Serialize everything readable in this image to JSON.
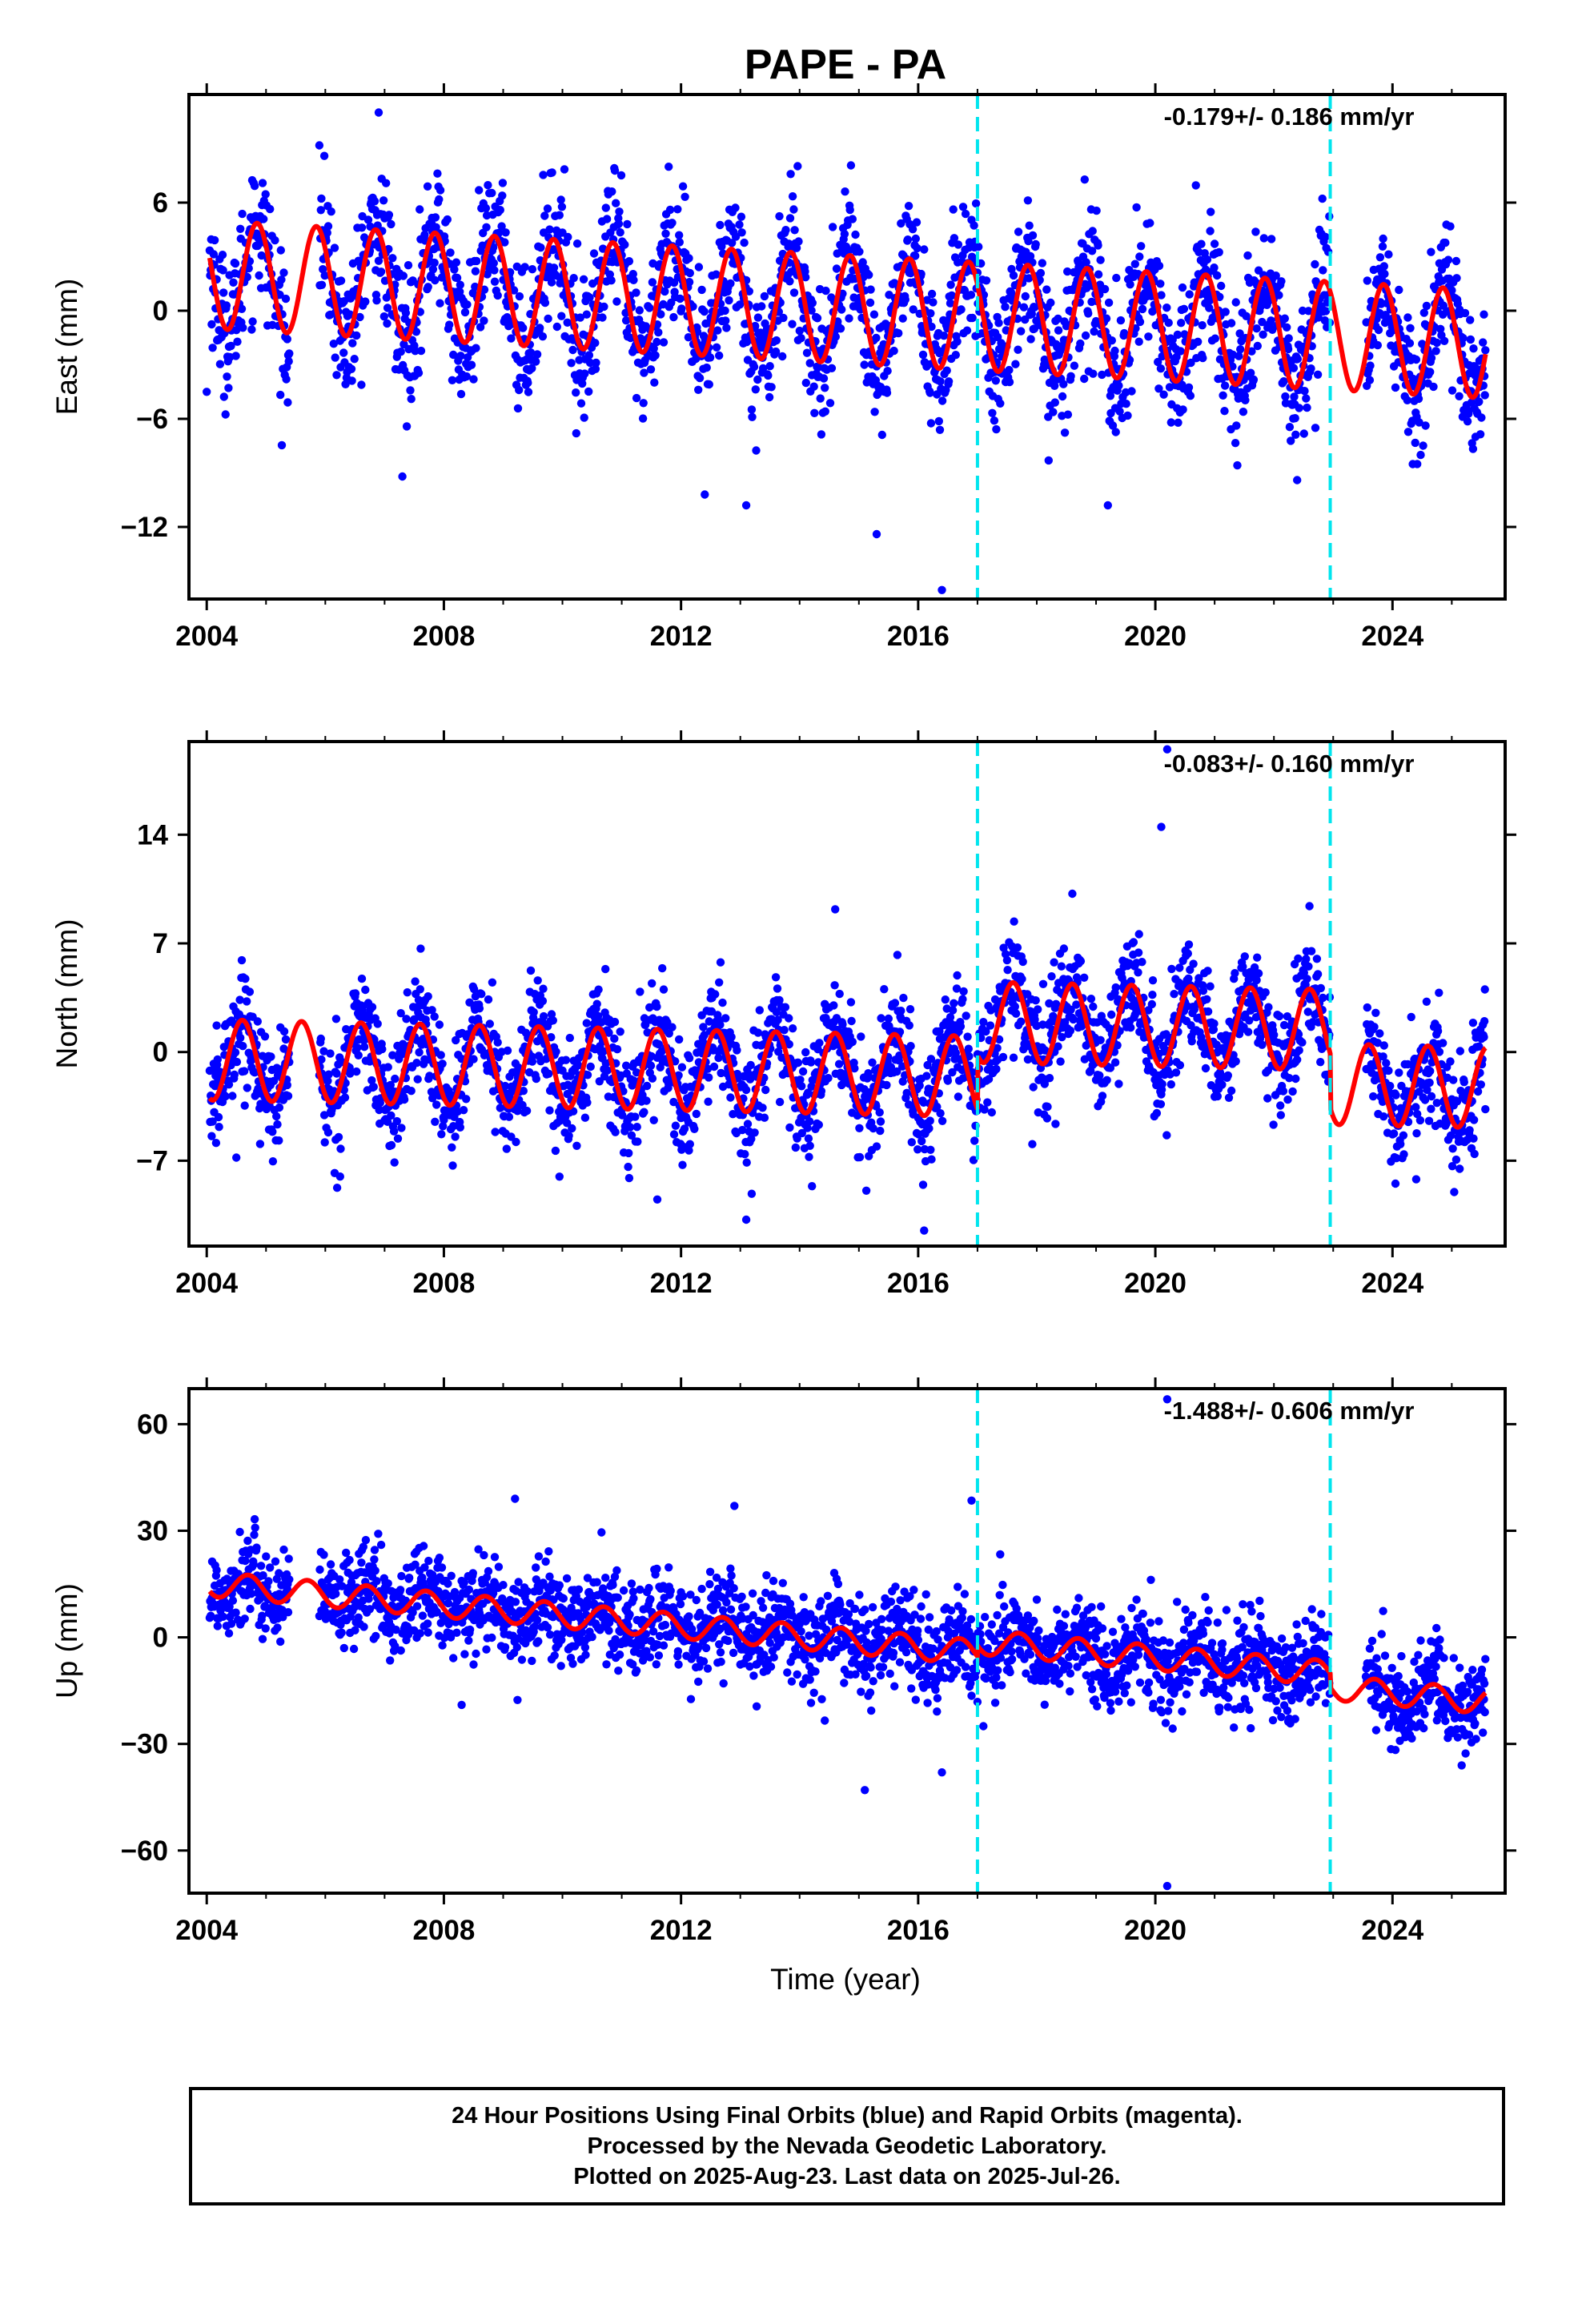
{
  "title": "PAPE - PA",
  "x_axis_label": "Time (year)",
  "colors": {
    "points": "#0000ff",
    "fit": "#ff0000",
    "breaks": "#00e5ee",
    "frame": "#000000"
  },
  "footer": {
    "line1": "24 Hour Positions Using Final Orbits (blue) and Rapid Orbits (magenta).",
    "line2": "Processed by the Nevada Geodetic Laboratory.",
    "line3": "Plotted on 2025-Aug-23. Last data on 2025-Jul-26."
  },
  "chart_data": [
    {
      "type": "scatter",
      "component": "east",
      "ylabel": "East (mm)",
      "rate_label": "-0.179+/- 0.186 mm/yr",
      "xlim": [
        2003.7,
        2025.9
      ],
      "ylim": [
        -16,
        12
      ],
      "xticks": [
        2004,
        2008,
        2012,
        2016,
        2020,
        2024
      ],
      "yticks": [
        -12,
        -6,
        0,
        6
      ],
      "breaks": [
        2017.0,
        2022.95
      ],
      "data_span": [
        2004.05,
        2025.57
      ],
      "series": [
        {
          "role": "daily positions",
          "color": "#0000ff",
          "trend": {
            "t0": 2004.05,
            "v0": 2.0,
            "rate": -0.179,
            "step": [
              [
                2017.0,
                0.0
              ],
              [
                2022.95,
                0.0
              ]
            ]
          },
          "annual_amplitude": 3.0,
          "phase_peak": 0.85,
          "scatter": 1.9
        },
        {
          "role": "model fit",
          "color": "#ff0000",
          "trend": {
            "t0": 2004.05,
            "v0": 2.0,
            "rate": -0.179
          },
          "annual_amplitude": 3.0,
          "phase_peak": 0.85
        }
      ],
      "outliers": [
        [
          2004.0,
          -4.5
        ],
        [
          2006.9,
          11.0
        ],
        [
          2007.3,
          -9.2
        ],
        [
          2012.4,
          -10.2
        ],
        [
          2013.1,
          -10.8
        ],
        [
          2015.3,
          -12.4
        ],
        [
          2016.4,
          -15.5
        ],
        [
          2019.2,
          -10.8
        ],
        [
          2022.7,
          -6.5
        ],
        [
          2025.4,
          -7.0
        ]
      ]
    },
    {
      "type": "scatter",
      "component": "north",
      "ylabel": "North (mm)",
      "rate_label": "-0.083+/- 0.160 mm/yr",
      "xlim": [
        2003.7,
        2025.9
      ],
      "ylim": [
        -12.5,
        20
      ],
      "xticks": [
        2004,
        2008,
        2012,
        2016,
        2020,
        2024
      ],
      "yticks": [
        -7,
        0,
        7,
        14
      ],
      "breaks": [
        2017.0,
        2022.95
      ],
      "data_span": [
        2004.05,
        2025.57
      ],
      "series": [
        {
          "role": "daily positions",
          "color": "#0000ff",
          "trend": {
            "t0": 2004.05,
            "v0": -0.5,
            "rate": -0.083,
            "step": [
              [
                2017.0,
                3.5
              ],
              [
                2022.95,
                -3.5
              ]
            ]
          },
          "annual_amplitude": 2.6,
          "phase_peak": 0.6,
          "scatter": 1.8
        },
        {
          "role": "model fit",
          "color": "#ff0000",
          "trend": {
            "t0": 2004.05,
            "v0": -0.5,
            "rate": -0.083
          },
          "annual_amplitude": 2.6,
          "phase_peak": 0.6
        }
      ],
      "outliers": [
        [
          2004.5,
          -6.8
        ],
        [
          2011.6,
          -9.5
        ],
        [
          2013.1,
          -10.8
        ],
        [
          2014.6,
          9.2
        ],
        [
          2016.1,
          -11.5
        ],
        [
          2018.6,
          10.2
        ],
        [
          2020.1,
          14.5
        ],
        [
          2020.2,
          19.5
        ],
        [
          2022.6,
          9.4
        ],
        [
          2024.4,
          -8.2
        ]
      ]
    },
    {
      "type": "scatter",
      "component": "up",
      "ylabel": "Up (mm)",
      "rate_label": "-1.488+/- 0.606 mm/yr",
      "xlim": [
        2003.7,
        2025.9
      ],
      "ylim": [
        -72,
        70
      ],
      "xticks": [
        2004,
        2008,
        2012,
        2016,
        2020,
        2024
      ],
      "yticks": [
        -60,
        -30,
        0,
        30,
        60
      ],
      "breaks": [
        2017.0,
        2022.95
      ],
      "data_span": [
        2004.05,
        2025.57
      ],
      "series": [
        {
          "role": "daily positions",
          "color": "#0000ff",
          "trend": {
            "t0": 2004.05,
            "v0": 15.0,
            "rate": -1.488,
            "step": [
              [
                2017.0,
                3.0
              ],
              [
                2022.95,
                -4.0
              ]
            ]
          },
          "annual_amplitude": 3.5,
          "phase_peak": 0.7,
          "scatter": 6.5
        },
        {
          "role": "model fit",
          "color": "#ff0000",
          "trend": {
            "t0": 2004.05,
            "v0": 15.0,
            "rate": -1.488
          },
          "annual_amplitude": 3.5,
          "phase_peak": 0.7
        }
      ],
      "outliers": [
        [
          2009.2,
          39
        ],
        [
          2012.9,
          37
        ],
        [
          2015.1,
          -43
        ],
        [
          2016.4,
          -38
        ],
        [
          2016.9,
          38.5
        ],
        [
          2017.1,
          -25
        ],
        [
          2020.2,
          67
        ],
        [
          2020.2,
          -70
        ],
        [
          2008.3,
          -19
        ]
      ]
    }
  ]
}
